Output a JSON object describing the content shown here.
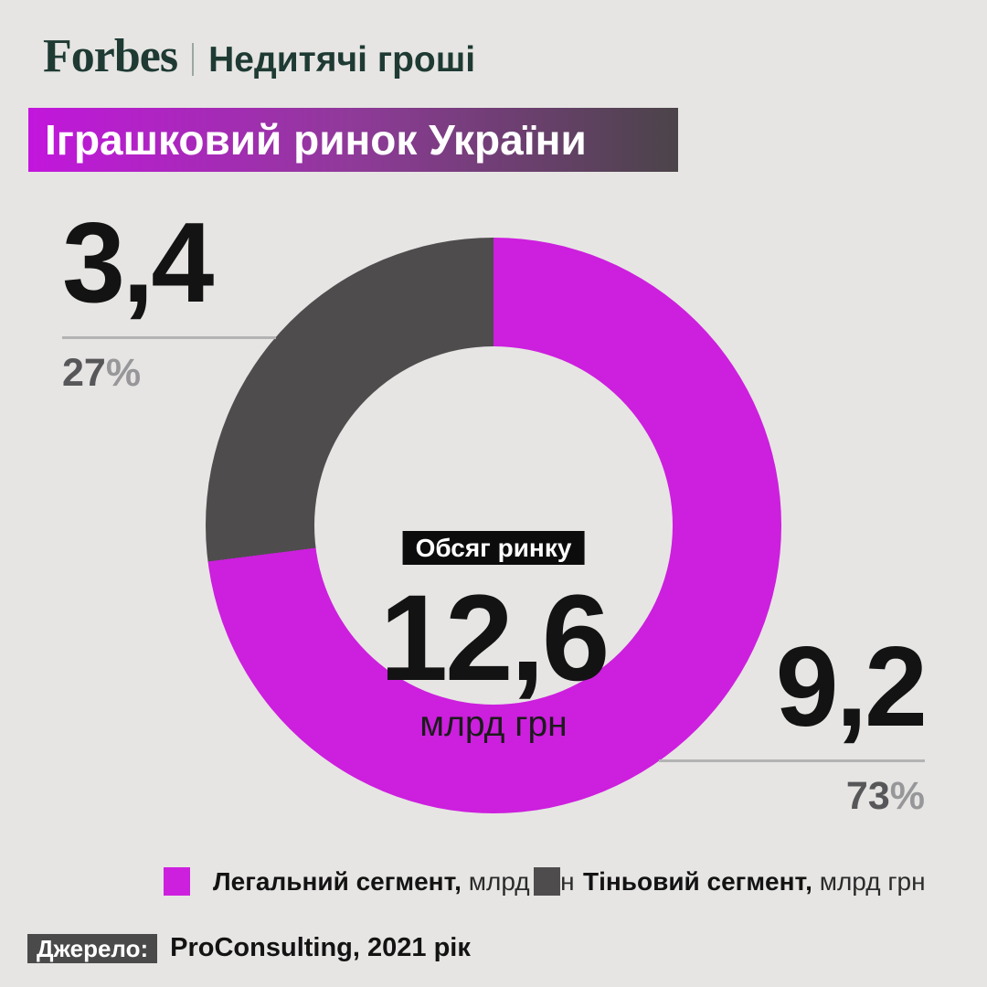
{
  "header": {
    "brand": "Forbes",
    "rubric": "Недитячі гроші",
    "title": "Іграшковий ринок України"
  },
  "chart_data": {
    "type": "pie",
    "subtype": "donut",
    "title": "Іграшковий ринок України",
    "center": {
      "label": "Обсяг ринку",
      "value": "12,6",
      "unit": "млрд грн"
    },
    "total": 12.6,
    "unit": "млрд грн",
    "start_angle_deg": 0,
    "direction": "clockwise",
    "legend_position": "bottom",
    "segments": [
      {
        "name": "Легальний сегмент",
        "legend_label": "Легальний сегмент,",
        "legend_unit": "млрд грн",
        "value": 9.2,
        "value_label": "9,2",
        "percent": 73,
        "percent_label": "73",
        "percent_sign": "%",
        "color": "#cd1fde"
      },
      {
        "name": "Тіньовий сегмент",
        "legend_label": "Тіньовий сегмент,",
        "legend_unit": "млрд грн",
        "value": 3.4,
        "value_label": "3,4",
        "percent": 27,
        "percent_label": "27",
        "percent_sign": "%",
        "color": "#4f4c4e"
      }
    ]
  },
  "source": {
    "label": "Джерело:",
    "text": "ProConsulting, 2021 рік"
  },
  "colors": {
    "background": "#e6e5e3",
    "accent_magenta": "#cd1fde",
    "dark_segment": "#4f4c4e",
    "brand_green": "#1e3a33",
    "title_gradient_start": "#c316dd",
    "title_gradient_mid": "#8f3a99",
    "title_gradient_end": "#4b4449",
    "center_badge": "#0c0c0c",
    "source_badge": "#4a4a4a",
    "callout_line": "#b3b3b3"
  }
}
